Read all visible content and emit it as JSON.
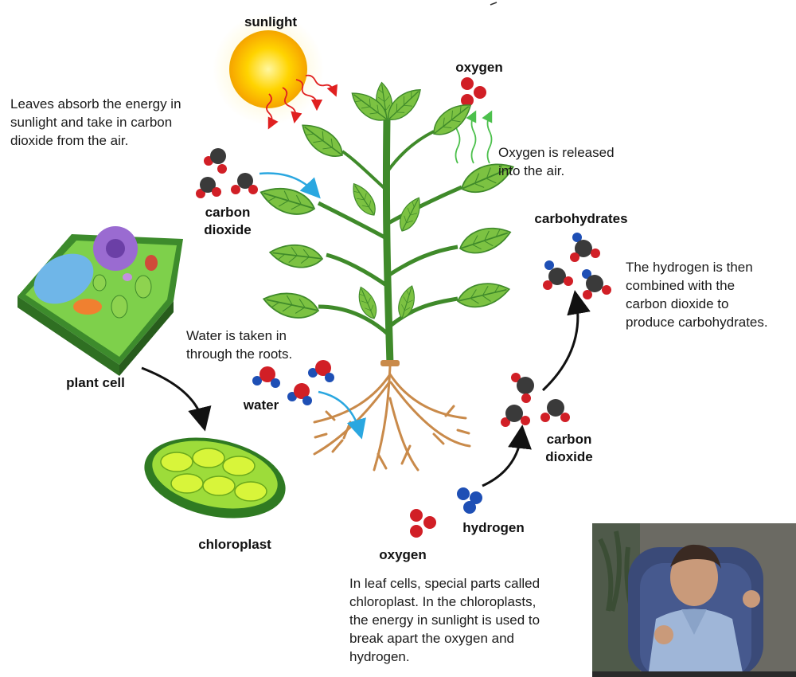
{
  "labels": {
    "sunlight": "sunlight",
    "oxygen_top": "oxygen",
    "carbon_dioxide_left": "carbon\ndioxide",
    "carbohydrates": "carbohydrates",
    "plant_cell": "plant cell",
    "water": "water",
    "carbon_dioxide_right": "carbon\ndioxide",
    "chloroplast": "chloroplast",
    "hydrogen": "hydrogen",
    "oxygen_bottom": "oxygen"
  },
  "descriptions": {
    "leaves": "Leaves absorb the energy in\nsunlight and take in carbon\ndioxide from the air.",
    "oxygen_release": "Oxygen is released\ninto the air.",
    "hydrogen_combine": "The hydrogen is then\ncombined with the\ncarbon dioxide to\nproduce carbohydrates.",
    "water_roots": "Water is taken in\nthrough the roots.",
    "chloroplast_info": "In leaf cells, special parts called\nchloroplast. In the chloroplasts,\nthe energy in sunlight is used to\nbreak apart the oxygen and\nhydrogen."
  },
  "colors": {
    "oxygen_atom": "#d11f26",
    "carbon_atom": "#3a3a3a",
    "hydrogen_atom": "#1e4fb5",
    "leaf": "#7cc242",
    "stem": "#3f8a2a",
    "root": "#c98a4a",
    "sun": "#ffd400",
    "arrow_blue": "#2aa7e0",
    "arrow_black": "#111111"
  }
}
